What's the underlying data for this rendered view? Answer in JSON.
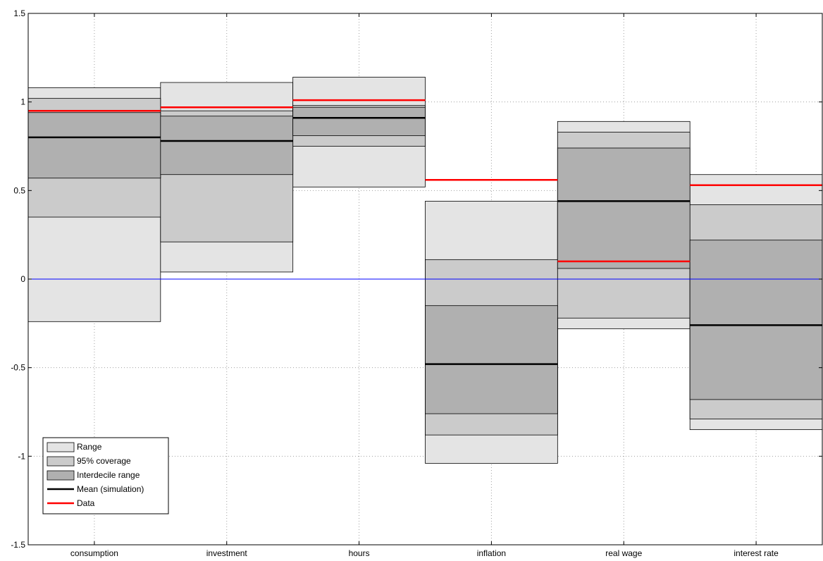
{
  "chart_data": {
    "type": "bar",
    "title": "",
    "xlabel": "",
    "ylabel": "",
    "categories": [
      "consumption",
      "investment",
      "hours",
      "inflation",
      "real wage",
      "interest rate"
    ],
    "ylim": [
      -1.5,
      1.5
    ],
    "yticks": [
      -1.5,
      -1,
      -0.5,
      0,
      0.5,
      1,
      1.5
    ],
    "ytick_labels": [
      "-1.5",
      "-1",
      "-0.5",
      "0",
      "0.5",
      "1",
      "1.5"
    ],
    "grid": "dotted",
    "zero_line": 0,
    "legend_position": "bottom-left",
    "series": [
      {
        "name": "Range",
        "min": [
          -0.24,
          0.04,
          0.52,
          -1.04,
          -0.28,
          -0.85
        ],
        "max": [
          1.08,
          1.11,
          1.14,
          0.44,
          0.89,
          0.59
        ]
      },
      {
        "name": "95% coverage",
        "min": [
          0.35,
          0.21,
          0.75,
          -0.88,
          -0.22,
          -0.79
        ],
        "max": [
          1.02,
          0.95,
          0.98,
          0.11,
          0.83,
          0.42
        ]
      },
      {
        "name": "Interdecile range",
        "min": [
          0.57,
          0.59,
          0.81,
          -0.76,
          0.06,
          -0.68
        ],
        "max": [
          0.94,
          0.92,
          0.97,
          -0.15,
          0.74,
          0.22
        ]
      },
      {
        "name": "Mean (simulation)",
        "values": [
          0.8,
          0.78,
          0.91,
          -0.48,
          0.44,
          -0.26
        ]
      },
      {
        "name": "Data",
        "values": [
          0.95,
          0.97,
          1.01,
          0.56,
          0.1,
          0.53
        ]
      }
    ],
    "colors": {
      "range": "#e4e4e4",
      "coverage": "#cbcbcb",
      "interdecile": "#b0b0b0",
      "mean": "#000000",
      "data": "#ff0000",
      "zero_line": "#0000ff",
      "grid": "#a0a0a0"
    }
  }
}
